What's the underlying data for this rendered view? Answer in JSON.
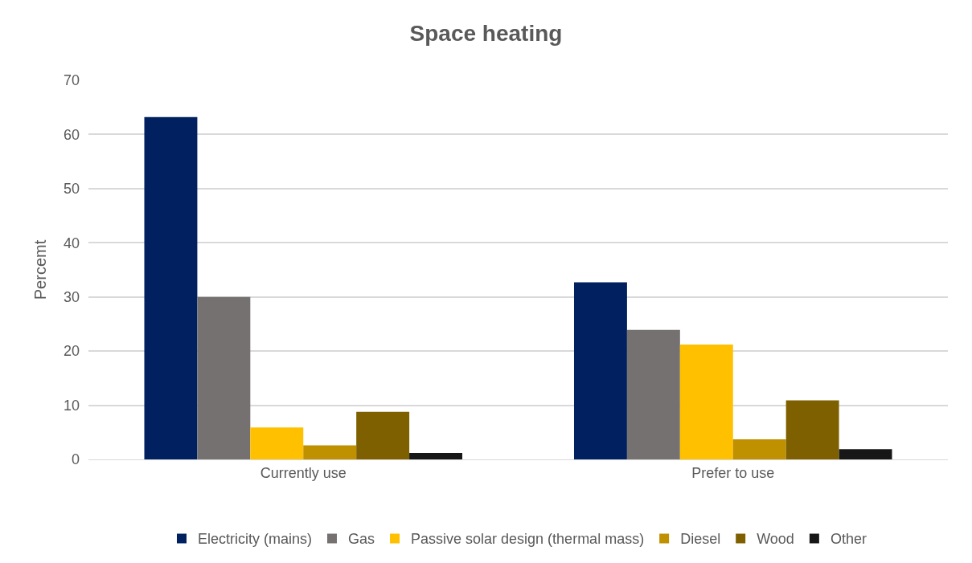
{
  "chart_data": {
    "type": "bar",
    "title": "Space heating",
    "ylabel": "Percemt",
    "categories": [
      "Currently use",
      "Prefer to use"
    ],
    "series": [
      {
        "name": "Electricity (mains)",
        "color": "#002060",
        "values": [
          63.2,
          32.7
        ]
      },
      {
        "name": "Gas",
        "color": "#767171",
        "values": [
          30.0,
          23.9
        ]
      },
      {
        "name": "Passive solar design (thermal mass)",
        "color": "#ffc000",
        "values": [
          5.9,
          21.2
        ]
      },
      {
        "name": "Diesel",
        "color": "#bf9000",
        "values": [
          2.6,
          3.7
        ]
      },
      {
        "name": "Wood",
        "color": "#7f6000",
        "values": [
          8.8,
          10.9
        ]
      },
      {
        "name": "Other",
        "color": "#171717",
        "values": [
          1.2,
          1.9
        ]
      }
    ],
    "ylim": [
      0,
      70
    ],
    "yticks": [
      0,
      10,
      20,
      30,
      40,
      50,
      60,
      70
    ],
    "grid": "y",
    "legend": "bottom"
  }
}
